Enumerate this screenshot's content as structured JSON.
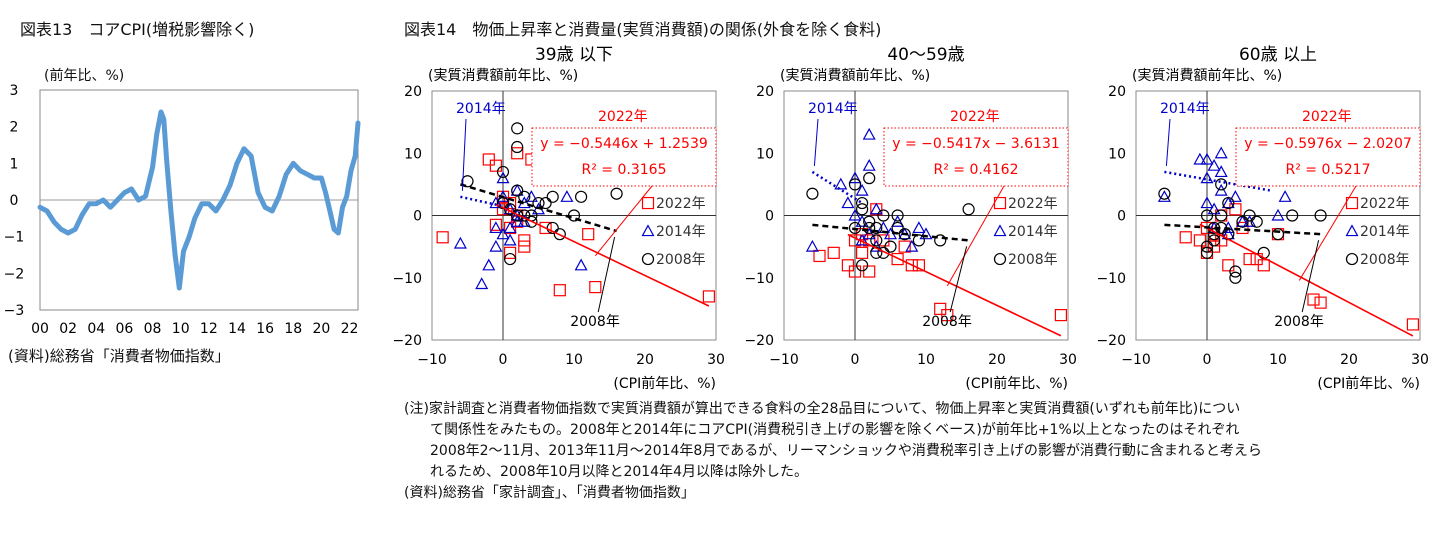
{
  "fig13": {
    "title": "図表13　コアCPI(増税影響除く)",
    "unit": "(前年比、%)",
    "source": "(資料)総務省「消費者物価指数」",
    "chart_data": {
      "type": "line",
      "title": "コアCPI(増税影響除く)",
      "ylabel": "(前年比、%)",
      "ylim": [
        -3,
        3
      ],
      "yticks": [
        3,
        2,
        1,
        0,
        -1,
        -2,
        -3
      ],
      "xlim": [
        2000,
        2022.6
      ],
      "xtick_years": [
        2000,
        2002,
        2004,
        2006,
        2008,
        2010,
        2012,
        2014,
        2016,
        2018,
        2020,
        2022
      ],
      "xtick_labels": [
        "00",
        "02",
        "04",
        "06",
        "08",
        "10",
        "12",
        "14",
        "16",
        "18",
        "20",
        "22"
      ],
      "color": "#5b9bd5",
      "series": [
        {
          "name": "コアCPI",
          "x": [
            2000,
            2000.5,
            2001,
            2001.5,
            2002,
            2002.5,
            2003,
            2003.5,
            2004,
            2004.5,
            2005,
            2005.5,
            2006,
            2006.5,
            2007,
            2007.5,
            2008,
            2008.3,
            2008.6,
            2008.8,
            2009,
            2009.3,
            2009.6,
            2009.9,
            2010.2,
            2010.6,
            2011,
            2011.5,
            2012,
            2012.5,
            2013,
            2013.5,
            2014,
            2014.5,
            2015,
            2015.5,
            2016,
            2016.5,
            2017,
            2017.5,
            2018,
            2018.5,
            2019,
            2019.5,
            2020,
            2020.3,
            2020.6,
            2020.9,
            2021.2,
            2021.5,
            2021.8,
            2022.1,
            2022.4,
            2022.6
          ],
          "y": [
            -0.2,
            -0.3,
            -0.6,
            -0.8,
            -0.9,
            -0.8,
            -0.4,
            -0.1,
            -0.1,
            0.0,
            -0.2,
            0.0,
            0.2,
            0.3,
            0.0,
            0.1,
            0.9,
            1.8,
            2.4,
            2.2,
            1.1,
            -0.3,
            -1.5,
            -2.4,
            -1.4,
            -1.0,
            -0.5,
            -0.1,
            -0.1,
            -0.3,
            0.0,
            0.4,
            1.0,
            1.4,
            1.2,
            0.2,
            -0.2,
            -0.3,
            0.1,
            0.7,
            1.0,
            0.8,
            0.7,
            0.6,
            0.6,
            0.2,
            -0.3,
            -0.8,
            -0.9,
            -0.2,
            0.1,
            0.8,
            1.2,
            2.1
          ]
        }
      ]
    }
  },
  "fig14": {
    "title": "図表14　物価上昇率と消費量(実質消費額)の関係(外食を除く食料)",
    "note": {
      "first": "(注)家計調査と消費者物価指数で実質消費額が算出できる食料の全28品目について、物価上昇率と実質消費額(いずれも前年比)につい",
      "lines": [
        "て関係性をみたもの。2008年と2014年にコアCPI(消費税引き上げの影響を除くベース)が前年比+1%以上となったのはそれぞれ",
        "2008年2～11月、2013年11月～2014年8月であるが、リーマンショックや消費税率引き上げの影響が消費行動に含まれると考えら",
        "れるため、2008年10月以降と2014年4月以降は除外した。"
      ]
    },
    "source": "(資料)総務省「家計調査」、「消費者物価指数」",
    "legend": {
      "y2022": "2022年",
      "y2014": "2014年",
      "y2008": "2008年"
    },
    "colors": {
      "y2022": "#ff0000",
      "y2014": "#0000cc",
      "y2008": "#000000"
    },
    "chart_data": [
      {
        "type": "scatter",
        "title": "39歳 以下",
        "ylabel": "(実質消費額前年比、%)",
        "xlabel": "(CPI前年比、%)",
        "xlim": [
          -10,
          30
        ],
        "ylim": [
          -20,
          20
        ],
        "xticks": [
          -10,
          0,
          10,
          20,
          30
        ],
        "yticks": [
          20,
          10,
          0,
          -10,
          -20
        ],
        "equation": "y = -0.5446x + 1.2539",
        "r2": "R² = 0.3165",
        "trend2022": {
          "slope": -0.5446,
          "intercept": 1.2539,
          "x_range": [
            -1,
            29
          ]
        },
        "trend2014": {
          "x_range": [
            -6,
            0
          ],
          "y_range": [
            3,
            1.5
          ]
        },
        "trend2008": {
          "x_range": [
            -6,
            16
          ],
          "y_range": [
            5,
            -2.5
          ]
        },
        "annot_2014": "2014年",
        "annot_2022": "2022年",
        "annot_2008": "2008年",
        "series": [
          {
            "name": "2022年",
            "marker": "square",
            "x": [
              -8.5,
              -2,
              -1,
              0,
              1,
              1,
              2,
              2,
              3,
              3,
              4,
              5,
              6,
              8,
              12,
              13,
              29,
              -1,
              2,
              1,
              0
            ],
            "y": [
              -3.5,
              9,
              8,
              3,
              2,
              -2,
              10,
              -1,
              -4,
              -5,
              9,
              10,
              -2,
              -12,
              -3,
              -11.5,
              -13,
              -1.5,
              0,
              -6,
              1
            ]
          },
          {
            "name": "2014年",
            "marker": "triangle",
            "x": [
              -6,
              -3,
              -2,
              -1,
              -1,
              -1,
              0,
              0,
              0,
              1,
              1,
              2,
              2,
              3,
              3,
              4,
              5,
              9,
              11,
              2,
              1
            ],
            "y": [
              -4.5,
              -11,
              -8,
              -5,
              -2,
              2,
              3,
              6,
              -3,
              1,
              -4,
              4,
              -1,
              2,
              -1,
              3,
              1,
              3,
              -8,
              0,
              -2
            ]
          },
          {
            "name": "2008年",
            "marker": "circle",
            "x": [
              -5,
              0,
              1,
              2,
              2,
              2,
              3,
              3,
              4,
              5,
              5,
              6,
              7,
              7,
              8,
              10,
              11,
              16,
              4,
              1,
              2,
              0
            ],
            "y": [
              5.5,
              7,
              1,
              14,
              11,
              4,
              3,
              0,
              -1,
              2,
              6,
              2,
              3,
              -2,
              -3,
              0,
              3,
              3.5,
              0,
              -7,
              0,
              2
            ]
          }
        ]
      },
      {
        "type": "scatter",
        "title": "40～59歳",
        "ylabel": "(実質消費額前年比、%)",
        "xlabel": "(CPI前年比、%)",
        "xlim": [
          -10,
          30
        ],
        "ylim": [
          -20,
          20
        ],
        "xticks": [
          -10,
          0,
          10,
          20,
          30
        ],
        "yticks": [
          20,
          10,
          0,
          -10,
          -20
        ],
        "equation": "y = -0.5417x - 3.6131",
        "r2": "R² = 0.4162",
        "trend2022": {
          "slope": -0.5417,
          "intercept": -3.6131,
          "x_range": [
            -1,
            29
          ]
        },
        "trend2014": {
          "x_range": [
            -6,
            1
          ],
          "y_range": [
            7,
            2
          ]
        },
        "trend2008": {
          "x_range": [
            -6,
            16
          ],
          "y_range": [
            -1.5,
            -4
          ]
        },
        "annot_2014": "2014年",
        "annot_2022": "2022年",
        "annot_2008": "2008年",
        "series": [
          {
            "name": "2022年",
            "marker": "square",
            "x": [
              -5,
              -3,
              -1,
              0,
              1,
              2,
              2,
              3,
              4,
              6,
              7,
              8,
              9,
              12,
              13,
              29,
              1,
              0
            ],
            "y": [
              -6.5,
              -6,
              -8,
              -9,
              -3,
              -9,
              -4,
              1,
              -4,
              -7,
              -5,
              -8,
              -8,
              -15,
              -16,
              -16,
              -6,
              -4
            ]
          },
          {
            "name": "2014年",
            "marker": "triangle",
            "x": [
              -6,
              -2,
              0,
              1,
              1,
              2,
              2,
              3,
              4,
              5,
              6,
              7,
              8,
              9,
              10,
              0,
              1,
              2,
              -1,
              3
            ],
            "y": [
              -5,
              5,
              6,
              4,
              -4,
              13,
              8,
              1,
              -2,
              -3,
              -1,
              -3,
              -5,
              -2,
              -3,
              0,
              -1,
              -3,
              2,
              -5
            ]
          },
          {
            "name": "2008年",
            "marker": "circle",
            "x": [
              -6,
              0,
              1,
              1,
              2,
              2,
              3,
              3,
              4,
              4,
              5,
              6,
              6,
              7,
              9,
              12,
              16,
              0,
              2,
              1,
              3
            ],
            "y": [
              3.5,
              5,
              2,
              1,
              6,
              -1,
              -2,
              -4,
              0,
              -6,
              -5,
              -2,
              0,
              -3,
              -4,
              -4,
              1,
              -2,
              -2,
              -8,
              -6
            ]
          }
        ]
      },
      {
        "type": "scatter",
        "title": "60歳 以上",
        "ylabel": "(実質消費額前年比、%)",
        "xlabel": "(CPI前年比、%)",
        "xlim": [
          -10,
          30
        ],
        "ylim": [
          -20,
          20
        ],
        "xticks": [
          -10,
          0,
          10,
          20,
          30
        ],
        "yticks": [
          20,
          10,
          0,
          -10,
          -20
        ],
        "equation": "y = -0.5976x - 2.0207",
        "r2": "R² = 0.5217",
        "trend2022": {
          "slope": -0.5976,
          "intercept": -2.0207,
          "x_range": [
            -1,
            29
          ]
        },
        "trend2014": {
          "x_range": [
            -6,
            9
          ],
          "y_range": [
            7,
            4
          ]
        },
        "trend2008": {
          "x_range": [
            -6,
            16
          ],
          "y_range": [
            -1.5,
            -3
          ]
        },
        "annot_2014": "2014年",
        "annot_2022": "2022年",
        "annot_2008": "2008年",
        "series": [
          {
            "name": "2022年",
            "marker": "square",
            "x": [
              -3,
              -1,
              0,
              0,
              1,
              2,
              3,
              4,
              5,
              6,
              7,
              8,
              10,
              15,
              16,
              29,
              2,
              1
            ],
            "y": [
              -3.5,
              -4,
              -6,
              -2,
              -3,
              -4,
              -8,
              1,
              -2,
              -7,
              -7,
              -8,
              -3,
              -13.5,
              -14,
              -17.5,
              0,
              -5
            ]
          },
          {
            "name": "2014年",
            "marker": "triangle",
            "x": [
              -6,
              -1,
              0,
              0,
              1,
              1,
              2,
              2,
              3,
              3,
              4,
              5,
              6,
              10,
              11,
              0,
              1,
              2,
              3
            ],
            "y": [
              3,
              9,
              9,
              2,
              8,
              1,
              4,
              10,
              2,
              -2,
              3,
              -1,
              -1,
              0,
              3,
              6,
              -2,
              7,
              -3
            ]
          },
          {
            "name": "2008年",
            "marker": "circle",
            "x": [
              -6,
              0,
              0,
              1,
              1,
              2,
              2,
              3,
              3,
              4,
              5,
              6,
              7,
              8,
              10,
              12,
              16,
              0,
              1,
              2,
              4
            ],
            "y": [
              3.5,
              -5,
              0,
              -4,
              -2,
              5,
              0,
              2,
              -3,
              -9,
              -1,
              0,
              -1,
              -6,
              -3,
              0,
              0,
              -6,
              -3,
              -2,
              -10
            ]
          }
        ]
      }
    ]
  }
}
